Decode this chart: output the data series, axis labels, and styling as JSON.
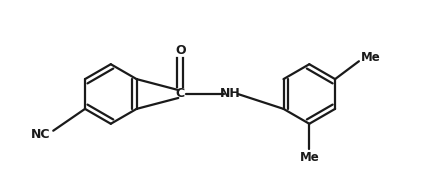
{
  "bg_color": "#ffffff",
  "line_color": "#1a1a1a",
  "line_width": 1.6,
  "font_size": 8.5,
  "figsize": [
    4.33,
    1.87
  ],
  "dpi": 100,
  "xlim": [
    0.0,
    4.33
  ],
  "ylim": [
    0.0,
    1.87
  ]
}
